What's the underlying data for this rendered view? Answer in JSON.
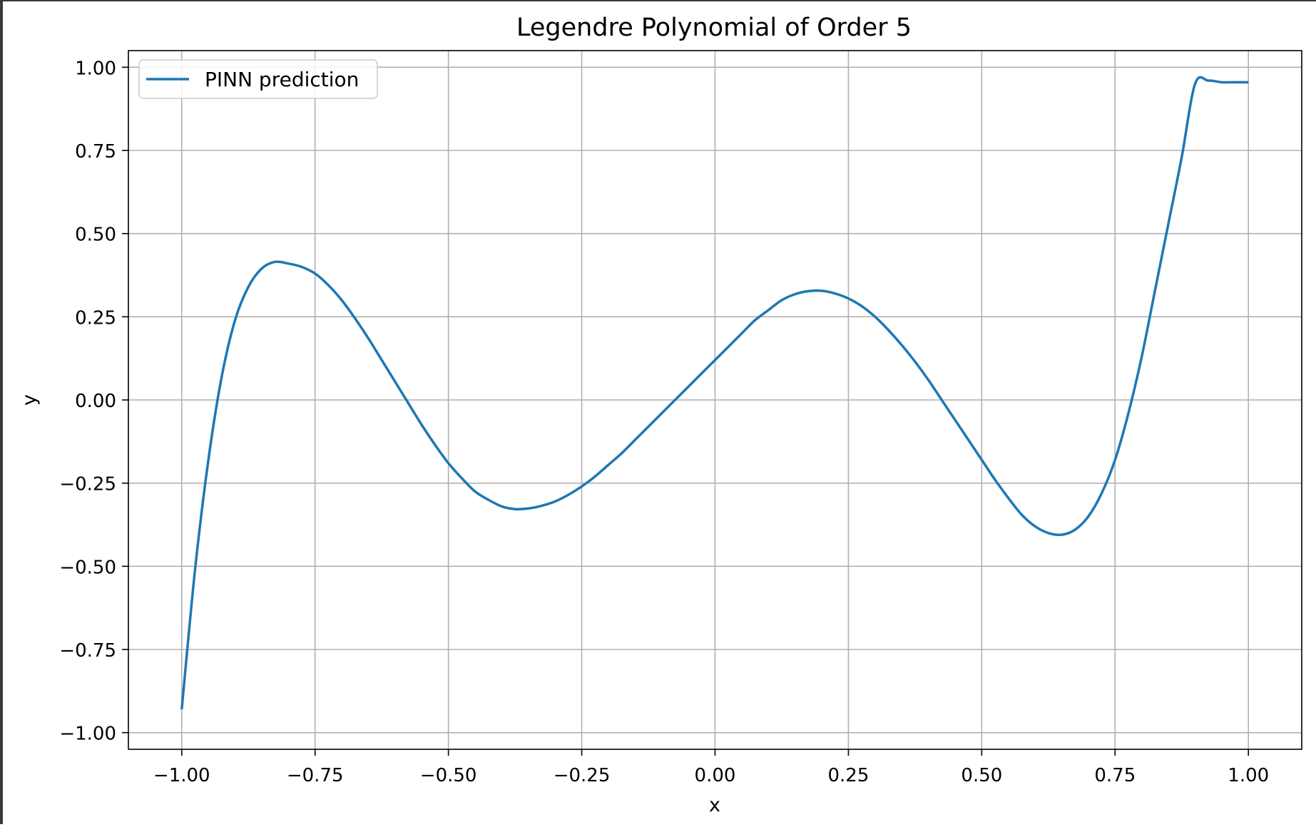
{
  "chart_data": {
    "type": "line",
    "title": "Legendre Polynomial of Order 5",
    "xlabel": "x",
    "ylabel": "y",
    "xlim": [
      -1.1,
      1.1
    ],
    "ylim": [
      -1.05,
      1.05
    ],
    "x_ticks": [
      -1.0,
      -0.75,
      -0.5,
      -0.25,
      0.0,
      0.25,
      0.5,
      0.75,
      1.0
    ],
    "x_tick_labels": [
      "−1.00",
      "−0.75",
      "−0.50",
      "−0.25",
      "0.00",
      "0.25",
      "0.50",
      "0.75",
      "1.00"
    ],
    "y_ticks": [
      1.0,
      0.75,
      0.5,
      0.25,
      0.0,
      -0.25,
      -0.5,
      -0.75,
      -1.0
    ],
    "y_tick_labels": [
      "1.00",
      "0.75",
      "0.50",
      "0.25",
      "0.00",
      "−0.25",
      "−0.50",
      "−0.75",
      "−1.00"
    ],
    "grid": true,
    "legend_position": "upper-left",
    "series": [
      {
        "name": "PINN prediction",
        "color": "#1f77b4",
        "x": [
          -1.0,
          -0.975,
          -0.95,
          -0.925,
          -0.9,
          -0.875,
          -0.85,
          -0.825,
          -0.8,
          -0.775,
          -0.75,
          -0.725,
          -0.7,
          -0.675,
          -0.65,
          -0.625,
          -0.6,
          -0.575,
          -0.55,
          -0.525,
          -0.5,
          -0.475,
          -0.45,
          -0.425,
          -0.4,
          -0.375,
          -0.35,
          -0.325,
          -0.3,
          -0.275,
          -0.25,
          -0.225,
          -0.2,
          -0.175,
          -0.15,
          -0.125,
          -0.1,
          -0.075,
          -0.05,
          -0.025,
          0.0,
          0.025,
          0.05,
          0.075,
          0.1,
          0.125,
          0.15,
          0.175,
          0.2,
          0.225,
          0.25,
          0.275,
          0.3,
          0.325,
          0.35,
          0.375,
          0.4,
          0.425,
          0.45,
          0.475,
          0.5,
          0.525,
          0.55,
          0.575,
          0.6,
          0.625,
          0.65,
          0.675,
          0.7,
          0.725,
          0.75,
          0.775,
          0.8,
          0.825,
          0.85,
          0.875,
          0.9,
          0.925,
          0.95,
          0.975,
          1.0
        ],
        "y": [
          -0.93,
          -0.51,
          -0.18,
          0.07,
          0.24,
          0.34,
          0.395,
          0.415,
          0.41,
          0.4,
          0.38,
          0.345,
          0.3,
          0.245,
          0.185,
          0.12,
          0.055,
          -0.01,
          -0.075,
          -0.135,
          -0.19,
          -0.235,
          -0.275,
          -0.3,
          -0.32,
          -0.328,
          -0.326,
          -0.318,
          -0.305,
          -0.285,
          -0.26,
          -0.23,
          -0.195,
          -0.16,
          -0.12,
          -0.08,
          -0.04,
          0.0,
          0.04,
          0.08,
          0.12,
          0.16,
          0.2,
          0.24,
          0.27,
          0.3,
          0.318,
          0.327,
          0.328,
          0.32,
          0.305,
          0.282,
          0.25,
          0.21,
          0.165,
          0.115,
          0.06,
          0.0,
          -0.06,
          -0.12,
          -0.18,
          -0.24,
          -0.295,
          -0.345,
          -0.38,
          -0.4,
          -0.405,
          -0.39,
          -0.35,
          -0.28,
          -0.18,
          -0.04,
          0.13,
          0.33,
          0.53,
          0.73,
          0.95,
          0.96,
          0.955,
          0.955,
          0.955
        ]
      }
    ]
  }
}
